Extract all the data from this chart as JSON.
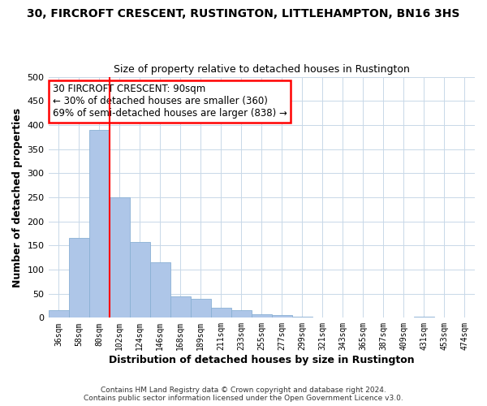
{
  "title": "30, FIRCROFT CRESCENT, RUSTINGTON, LITTLEHAMPTON, BN16 3HS",
  "subtitle": "Size of property relative to detached houses in Rustington",
  "xlabel": "Distribution of detached houses by size in Rustington",
  "ylabel": "Number of detached properties",
  "bar_labels": [
    "36sqm",
    "58sqm",
    "80sqm",
    "102sqm",
    "124sqm",
    "146sqm",
    "168sqm",
    "189sqm",
    "211sqm",
    "233sqm",
    "255sqm",
    "277sqm",
    "299sqm",
    "321sqm",
    "343sqm",
    "365sqm",
    "387sqm",
    "409sqm",
    "431sqm",
    "453sqm",
    "474sqm"
  ],
  "bar_heights": [
    15,
    165,
    390,
    250,
    157,
    115,
    45,
    40,
    20,
    15,
    8,
    5,
    2,
    1,
    1,
    1,
    0,
    0,
    2,
    0,
    1
  ],
  "bar_color": "#aec6e8",
  "bar_edge_color": "#8ab0d4",
  "red_line_x": 2.5,
  "ylim": [
    0,
    500
  ],
  "yticks": [
    0,
    50,
    100,
    150,
    200,
    250,
    300,
    350,
    400,
    450,
    500
  ],
  "annotation_title": "30 FIRCROFT CRESCENT: 90sqm",
  "annotation_line1": "← 30% of detached houses are smaller (360)",
  "annotation_line2": "69% of semi-detached houses are larger (838) →",
  "footnote1": "Contains HM Land Registry data © Crown copyright and database right 2024.",
  "footnote2": "Contains public sector information licensed under the Open Government Licence v3.0.",
  "background_color": "#ffffff",
  "grid_color": "#c8d8e8"
}
